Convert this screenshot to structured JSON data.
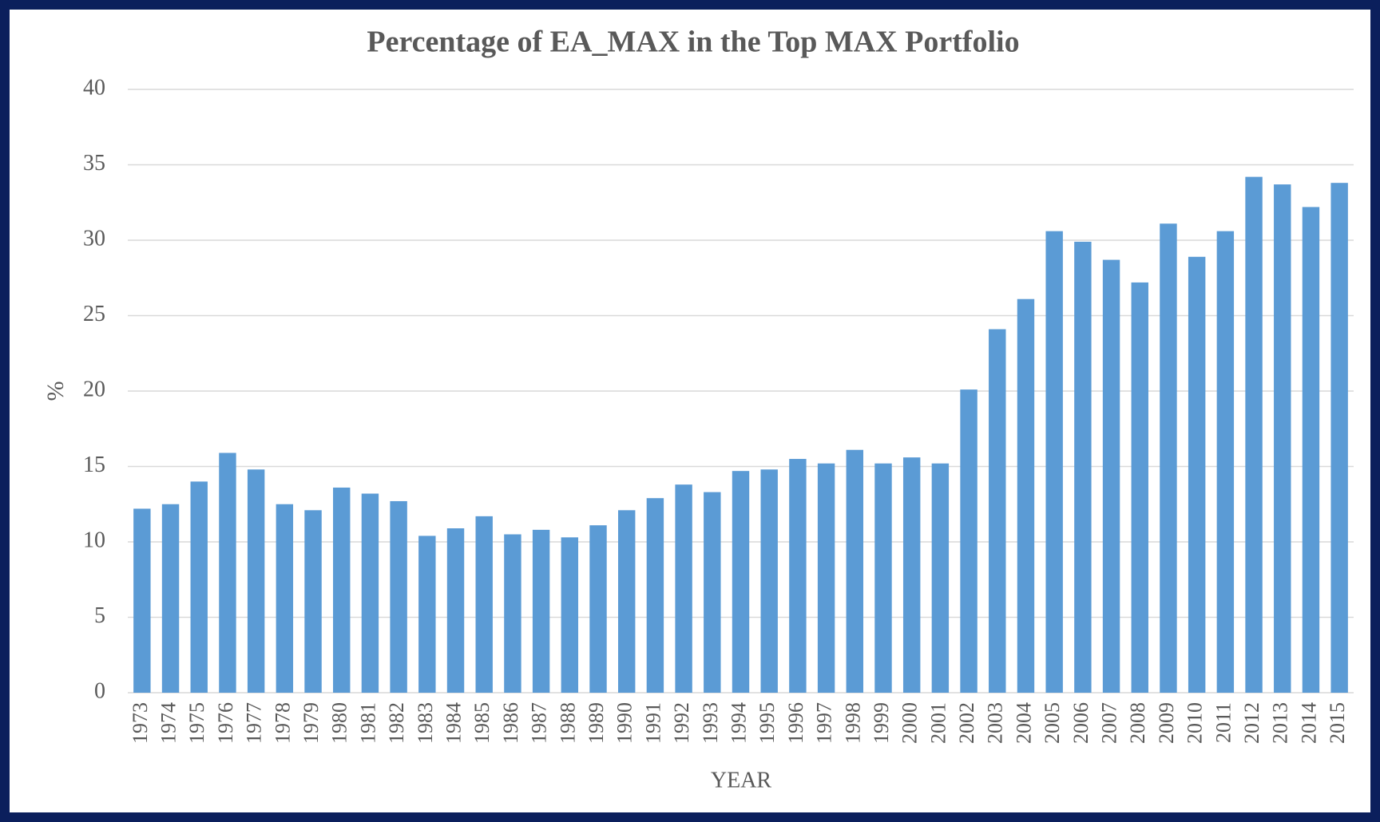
{
  "chart_data": {
    "type": "bar",
    "title": "Percentage of EA_MAX in the Top MAX Portfolio",
    "x_label": "YEAR",
    "y_label": "%",
    "categories": [
      "1973",
      "1974",
      "1975",
      "1976",
      "1977",
      "1978",
      "1979",
      "1980",
      "1981",
      "1982",
      "1983",
      "1984",
      "1985",
      "1986",
      "1987",
      "1988",
      "1989",
      "1990",
      "1991",
      "1992",
      "1993",
      "1994",
      "1995",
      "1996",
      "1997",
      "1998",
      "1999",
      "2000",
      "2001",
      "2002",
      "2003",
      "2004",
      "2005",
      "2006",
      "2007",
      "2008",
      "2009",
      "2010",
      "2011",
      "2012",
      "2013",
      "2014",
      "2015"
    ],
    "values": [
      12.2,
      12.5,
      14.0,
      15.9,
      14.8,
      12.5,
      12.1,
      13.6,
      13.2,
      12.7,
      10.4,
      10.9,
      11.7,
      10.5,
      10.8,
      10.3,
      11.1,
      12.1,
      12.9,
      13.8,
      13.3,
      14.7,
      14.8,
      15.5,
      15.2,
      16.1,
      15.2,
      15.6,
      15.2,
      20.1,
      24.1,
      26.1,
      30.6,
      29.9,
      28.7,
      27.2,
      31.1,
      28.9,
      30.6,
      34.2,
      33.7,
      32.2,
      33.8
    ],
    "color": "#5b9bd5",
    "ylim": [
      0,
      40
    ],
    "yticks": [
      0,
      5,
      10,
      15,
      20,
      25,
      30,
      35,
      40
    ],
    "grid": true
  }
}
